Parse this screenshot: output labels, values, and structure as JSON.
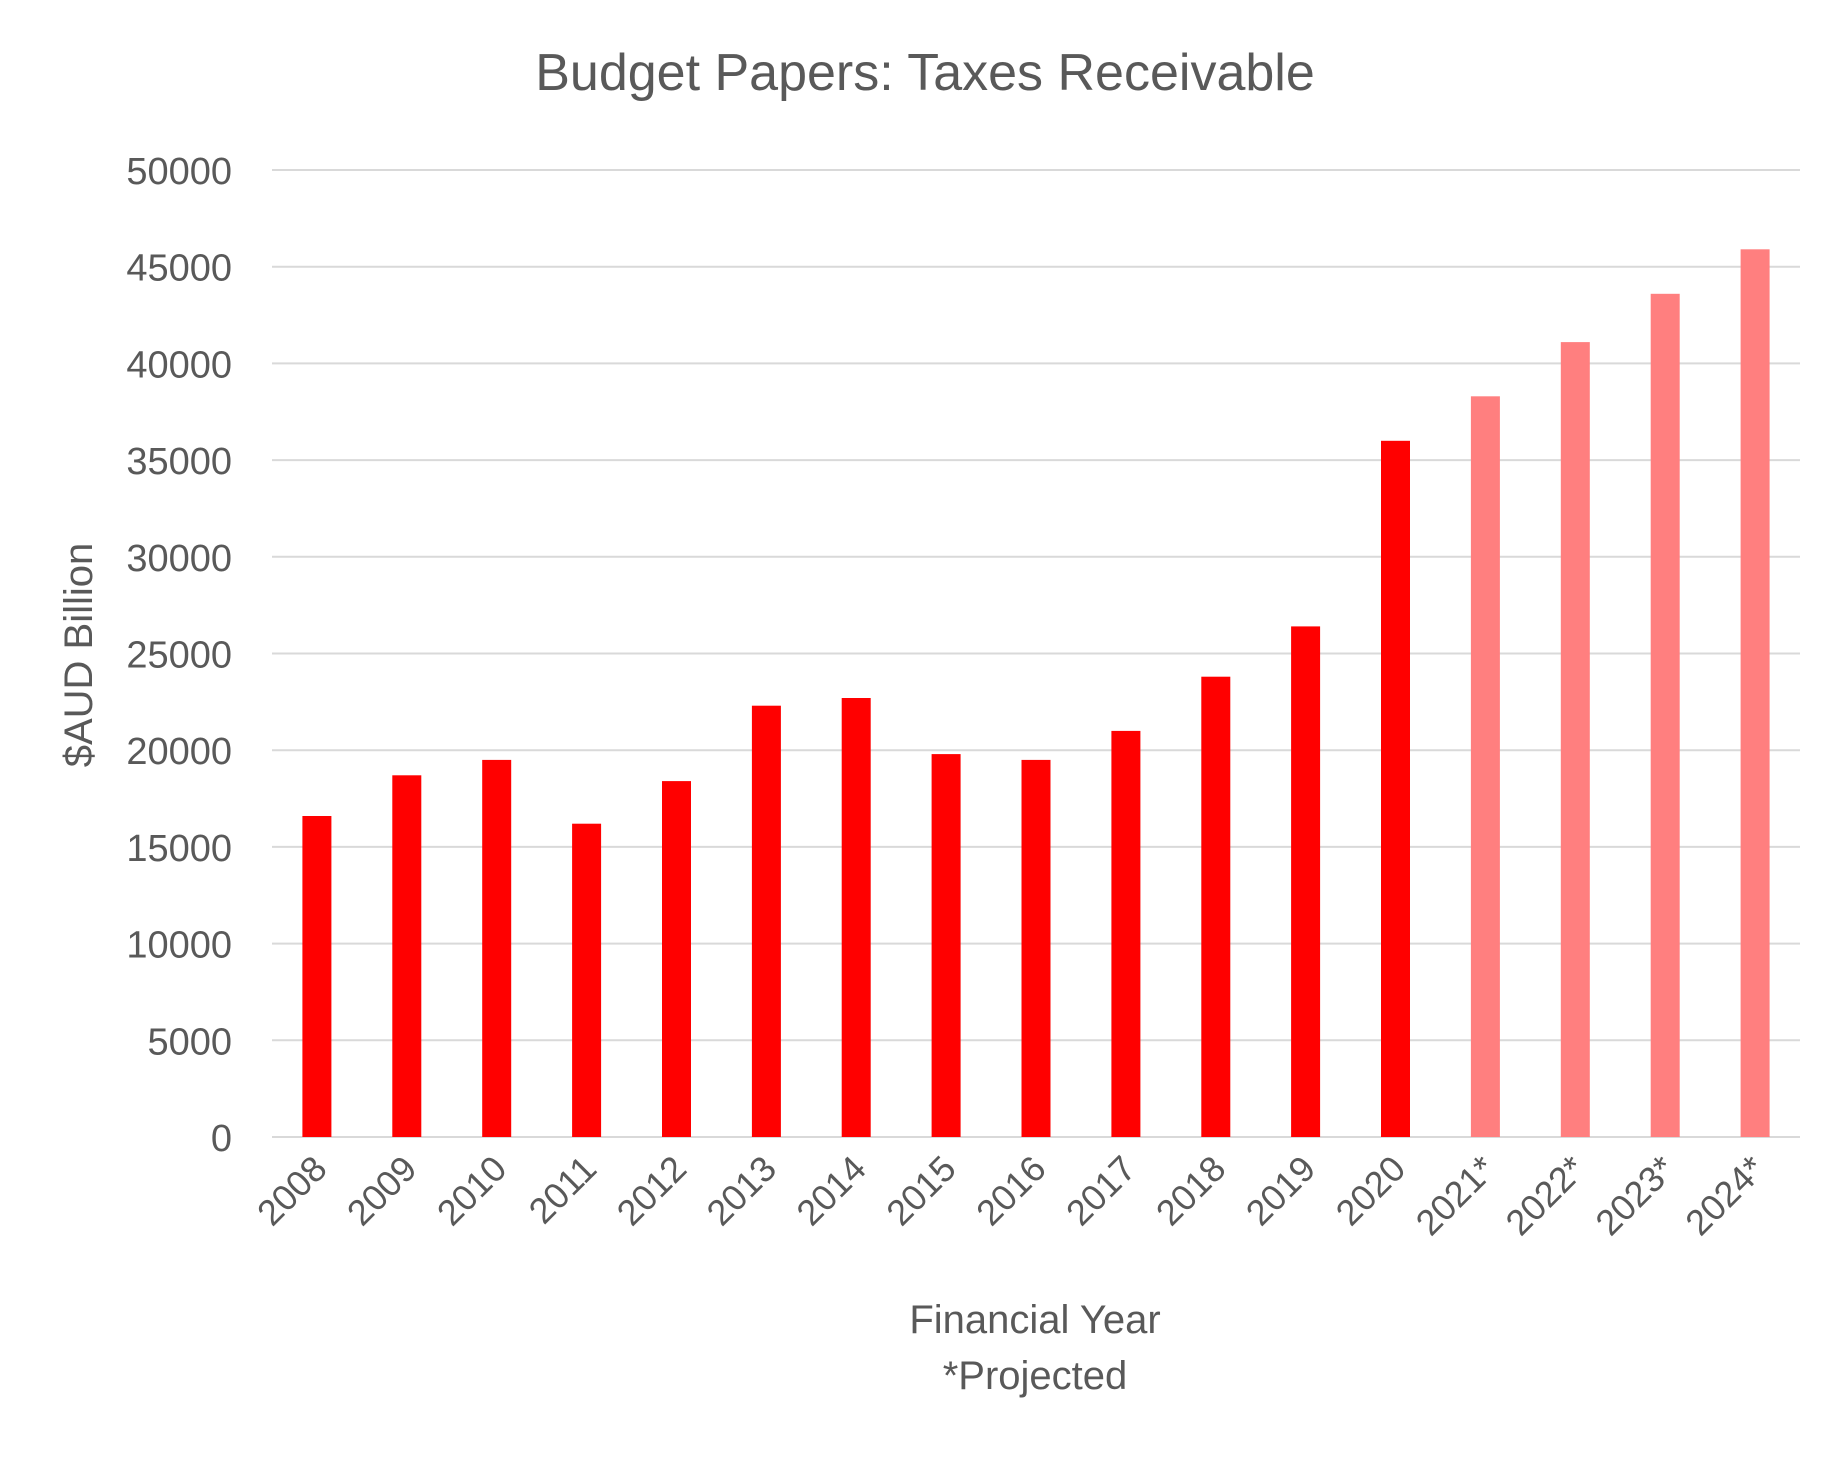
{
  "chart_data": {
    "type": "bar",
    "title": "Budget Papers: Taxes Receivable",
    "xlabel": "Financial Year",
    "xlabel_note": "*Projected",
    "ylabel": "$AUD Billion",
    "ylim": [
      0,
      50000
    ],
    "yticks": [
      0,
      5000,
      10000,
      15000,
      20000,
      25000,
      30000,
      35000,
      40000,
      45000,
      50000
    ],
    "grid": true,
    "legend": "none",
    "categories": [
      "2008",
      "2009",
      "2010",
      "2011",
      "2012",
      "2013",
      "2014",
      "2015",
      "2016",
      "2017",
      "2018",
      "2019",
      "2020",
      "2021*",
      "2022*",
      "2023*",
      "2024*"
    ],
    "values": [
      16600,
      18700,
      19500,
      16200,
      18400,
      22300,
      22700,
      19800,
      19500,
      21000,
      23800,
      26400,
      36000,
      38300,
      41100,
      43600,
      45900
    ],
    "projected": [
      false,
      false,
      false,
      false,
      false,
      false,
      false,
      false,
      false,
      false,
      false,
      false,
      false,
      true,
      true,
      true,
      true
    ],
    "colors": {
      "actual": "#ff0000",
      "projected": "#ff7f7f",
      "grid": "#d9d9d9",
      "text": "#595959"
    }
  }
}
